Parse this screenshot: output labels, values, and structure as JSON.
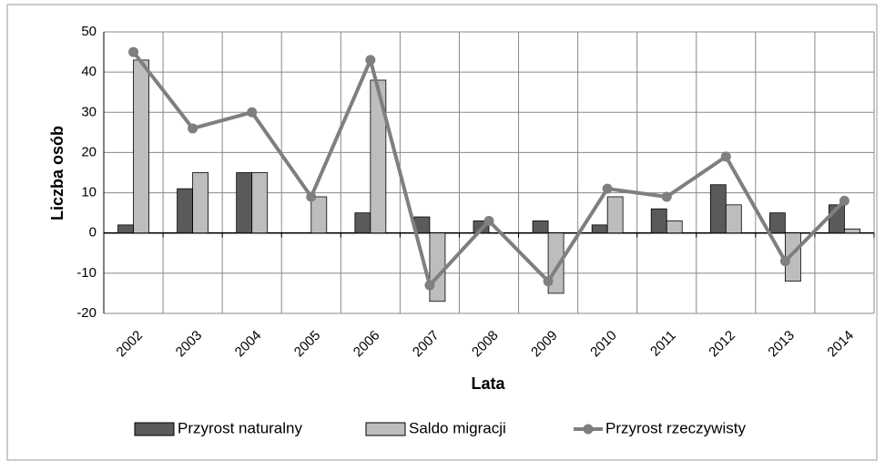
{
  "chart_data": {
    "type": "bar_line",
    "x_label": "Lata",
    "y_label": "Liczba osób",
    "categories": [
      "2002",
      "2003",
      "2004",
      "2005",
      "2006",
      "2007",
      "2008",
      "2009",
      "2010",
      "2011",
      "2012",
      "2013",
      "2014"
    ],
    "series": [
      {
        "name": "Przyrost naturalny",
        "type": "bar",
        "color": "#5a5a5a",
        "values": [
          2,
          11,
          15,
          0,
          5,
          4,
          3,
          3,
          2,
          6,
          12,
          5,
          7
        ]
      },
      {
        "name": "Saldo migracji",
        "type": "bar",
        "color": "#bdbdbd",
        "values": [
          43,
          15,
          15,
          9,
          38,
          -17,
          0,
          -15,
          9,
          3,
          7,
          -12,
          1
        ]
      },
      {
        "name": "Przyrost rzeczywisty",
        "type": "line",
        "color": "#7f7f7f",
        "values": [
          45,
          26,
          30,
          9,
          43,
          -13,
          3,
          -12,
          11,
          9,
          19,
          -7,
          8
        ]
      }
    ],
    "ylim": [
      -20,
      50
    ],
    "yticks": [
      -20,
      -10,
      0,
      10,
      20,
      30,
      40,
      50
    ],
    "grid": true,
    "legend": "bottom"
  }
}
